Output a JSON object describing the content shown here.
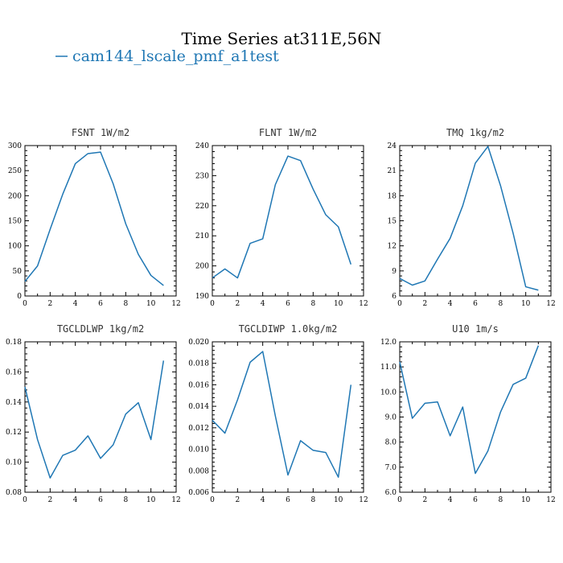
{
  "figure": {
    "title": "Time Series at311E,56N",
    "legend_label": "cam144_lscale_pmf_a1test",
    "line_color": "#1f77b4"
  },
  "chart_data": [
    {
      "type": "line",
      "title": "FSNT   1W/m2",
      "x": [
        0,
        1,
        2,
        3,
        4,
        5,
        6,
        7,
        8,
        9,
        10,
        11
      ],
      "values": [
        29,
        60,
        133,
        203,
        264,
        284,
        287,
        224,
        144,
        83,
        41,
        21
      ],
      "xlim": [
        0,
        12
      ],
      "ylim": [
        0,
        300
      ],
      "xticks": [
        0,
        2,
        4,
        6,
        8,
        10,
        12
      ],
      "yticks": [
        0,
        50,
        100,
        150,
        200,
        250,
        300
      ],
      "ytick_labels": [
        "0",
        "50",
        "100",
        "150",
        "200",
        "250",
        "300"
      ],
      "series": [
        {
          "name": "cam144_lscale_pmf_a1test"
        }
      ]
    },
    {
      "type": "line",
      "title": "FLNT   1W/m2",
      "x": [
        0,
        1,
        2,
        3,
        4,
        5,
        6,
        7,
        8,
        9,
        10,
        11
      ],
      "values": [
        196,
        199,
        196,
        207.5,
        209,
        227,
        236.5,
        235,
        225.5,
        217,
        213,
        200.5
      ],
      "xlim": [
        0,
        12
      ],
      "ylim": [
        190,
        240
      ],
      "xticks": [
        0,
        2,
        4,
        6,
        8,
        10,
        12
      ],
      "yticks": [
        190,
        200,
        210,
        220,
        230,
        240
      ],
      "ytick_labels": [
        "190",
        "200",
        "210",
        "220",
        "230",
        "240"
      ],
      "series": [
        {
          "name": "cam144_lscale_pmf_a1test"
        }
      ]
    },
    {
      "type": "line",
      "title": "TMQ   1kg/m2",
      "x": [
        0,
        1,
        2,
        3,
        4,
        5,
        6,
        7,
        8,
        9,
        10,
        11
      ],
      "values": [
        8.1,
        7.3,
        7.8,
        10.4,
        12.9,
        16.8,
        21.9,
        23.9,
        19.2,
        13.5,
        7.1,
        6.7
      ],
      "xlim": [
        0,
        12
      ],
      "ylim": [
        6,
        24
      ],
      "xticks": [
        0,
        2,
        4,
        6,
        8,
        10,
        12
      ],
      "yticks": [
        6,
        9,
        12,
        15,
        18,
        21,
        24
      ],
      "ytick_labels": [
        "6",
        "9",
        "12",
        "15",
        "18",
        "21",
        "24"
      ],
      "series": [
        {
          "name": "cam144_lscale_pmf_a1test"
        }
      ]
    },
    {
      "type": "line",
      "title": "TGCLDLWP   1kg/m2",
      "x": [
        0,
        1,
        2,
        3,
        4,
        5,
        6,
        7,
        8,
        9,
        10,
        11
      ],
      "values": [
        0.15,
        0.115,
        0.0895,
        0.1045,
        0.108,
        0.1175,
        0.1025,
        0.1115,
        0.132,
        0.1395,
        0.115,
        0.1675
      ],
      "xlim": [
        0,
        12
      ],
      "ylim": [
        0.08,
        0.18
      ],
      "xticks": [
        0,
        2,
        4,
        6,
        8,
        10,
        12
      ],
      "yticks": [
        0.08,
        0.1,
        0.12,
        0.14,
        0.16,
        0.18
      ],
      "ytick_labels": [
        "0.08",
        "0.10",
        "0.12",
        "0.14",
        "0.16",
        "0.18"
      ],
      "series": [
        {
          "name": "cam144_lscale_pmf_a1test"
        }
      ]
    },
    {
      "type": "line",
      "title": "TGCLDIWP   1.0kg/m2",
      "x": [
        0,
        1,
        2,
        3,
        4,
        5,
        6,
        7,
        8,
        9,
        10,
        11
      ],
      "values": [
        0.0127,
        0.0115,
        0.0146,
        0.0181,
        0.0191,
        0.0131,
        0.0076,
        0.0108,
        0.0099,
        0.0097,
        0.0074,
        0.016
      ],
      "xlim": [
        0,
        12
      ],
      "ylim": [
        0.006,
        0.02
      ],
      "xticks": [
        0,
        2,
        4,
        6,
        8,
        10,
        12
      ],
      "yticks": [
        0.006,
        0.008,
        0.01,
        0.012,
        0.014,
        0.016,
        0.018,
        0.02
      ],
      "ytick_labels": [
        "0.006",
        "0.008",
        "0.010",
        "0.012",
        "0.014",
        "0.016",
        "0.018",
        "0.020"
      ],
      "series": [
        {
          "name": "cam144_lscale_pmf_a1test"
        }
      ]
    },
    {
      "type": "line",
      "title": "U10   1m/s",
      "x": [
        0,
        1,
        2,
        3,
        4,
        5,
        6,
        7,
        8,
        9,
        10,
        11
      ],
      "values": [
        11.2,
        8.95,
        9.55,
        9.6,
        8.25,
        9.4,
        6.75,
        7.65,
        9.2,
        10.3,
        10.55,
        11.85
      ],
      "xlim": [
        0,
        12
      ],
      "ylim": [
        6,
        12
      ],
      "xticks": [
        0,
        2,
        4,
        6,
        8,
        10,
        12
      ],
      "yticks": [
        6,
        7,
        8,
        9,
        10,
        11,
        12
      ],
      "ytick_labels": [
        "6.0",
        "7.0",
        "8.0",
        "9.0",
        "10.0",
        "11.0",
        "12.0"
      ],
      "series": [
        {
          "name": "cam144_lscale_pmf_a1test"
        }
      ]
    }
  ]
}
